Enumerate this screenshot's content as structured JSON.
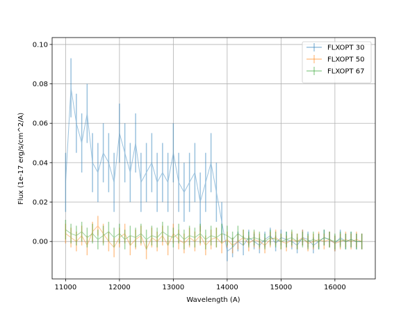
{
  "chart_data": {
    "type": "line",
    "xlabel": "Wavelength (A)",
    "ylabel": "Flux (1e-17 erg/s/cm^2/A)",
    "xlim": [
      10750,
      16750
    ],
    "ylim": [
      -0.019,
      0.1035
    ],
    "xticks": [
      11000,
      12000,
      13000,
      14000,
      15000,
      16000
    ],
    "yticks": [
      0.0,
      0.02,
      0.04,
      0.06,
      0.08,
      0.1
    ],
    "ytick_labels": [
      "0.00",
      "0.02",
      "0.04",
      "0.06",
      "0.08",
      "0.10"
    ],
    "grid": true,
    "legend_position": "top-right",
    "series": [
      {
        "name": "FLXOPT 30",
        "color": "#1f77b4",
        "x": [
          11000,
          11100,
          11200,
          11300,
          11400,
          11500,
          11600,
          11700,
          11800,
          11900,
          12000,
          12100,
          12200,
          12300,
          12400,
          12500,
          12600,
          12700,
          12800,
          12900,
          13000,
          13100,
          13200,
          13300,
          13400,
          13500,
          13600,
          13700,
          13800,
          13900,
          14000,
          14100,
          14200,
          14300,
          14400,
          14500,
          14600,
          14700,
          14800,
          14900,
          15000,
          15100,
          15200,
          15300,
          15400,
          15500,
          15600,
          15700,
          15800,
          15900,
          16000,
          16100,
          16200,
          16300,
          16400,
          16500
        ],
        "y": [
          0.03,
          0.078,
          0.06,
          0.05,
          0.065,
          0.04,
          0.035,
          0.045,
          0.04,
          0.03,
          0.055,
          0.045,
          0.035,
          0.05,
          0.03,
          0.035,
          0.04,
          0.03,
          0.035,
          0.03,
          0.045,
          0.03,
          0.025,
          0.03,
          0.035,
          0.02,
          0.03,
          0.04,
          0.025,
          0.01,
          -0.005,
          -0.003,
          0.0,
          -0.002,
          0.002,
          0.0,
          -0.002,
          0.001,
          0.003,
          -0.001,
          0.002,
          0.001,
          0.0,
          -0.002,
          0.002,
          0.001,
          -0.002,
          0.0,
          0.002,
          0.001,
          -0.001,
          0.002,
          0.0,
          0.001,
          0.0,
          0.0
        ],
        "err": [
          0.015,
          0.015,
          0.015,
          0.015,
          0.015,
          0.015,
          0.015,
          0.015,
          0.015,
          0.015,
          0.015,
          0.015,
          0.015,
          0.015,
          0.015,
          0.015,
          0.015,
          0.015,
          0.015,
          0.015,
          0.015,
          0.015,
          0.015,
          0.015,
          0.015,
          0.015,
          0.015,
          0.015,
          0.015,
          0.01,
          0.005,
          0.005,
          0.005,
          0.005,
          0.004,
          0.004,
          0.004,
          0.004,
          0.004,
          0.004,
          0.004,
          0.004,
          0.004,
          0.004,
          0.004,
          0.004,
          0.004,
          0.004,
          0.004,
          0.004,
          0.004,
          0.004,
          0.004,
          0.004,
          0.004,
          0.004
        ]
      },
      {
        "name": "FLXOPT 50",
        "color": "#ff7f0e",
        "x": [
          11000,
          11100,
          11200,
          11300,
          11400,
          11500,
          11600,
          11700,
          11800,
          11900,
          12000,
          12100,
          12200,
          12300,
          12400,
          12500,
          12600,
          12700,
          12800,
          12900,
          13000,
          13100,
          13200,
          13300,
          13400,
          13500,
          13600,
          13700,
          13800,
          13900,
          14000,
          14100,
          14200,
          14300,
          14400,
          14500,
          14600,
          14700,
          14800,
          14900,
          15000,
          15100,
          15200,
          15300,
          15400,
          15500,
          15600,
          15700,
          15800,
          15900,
          16000,
          16100,
          16200,
          16300,
          16400,
          16500
        ],
        "y": [
          0.004,
          0.002,
          0.0,
          0.003,
          -0.002,
          0.005,
          0.008,
          0.004,
          0.0,
          -0.003,
          0.002,
          0.004,
          -0.002,
          0.001,
          0.003,
          -0.004,
          0.002,
          0.0,
          0.003,
          -0.002,
          0.004,
          0.001,
          -0.001,
          0.002,
          0.0,
          0.003,
          -0.002,
          0.001,
          0.002,
          -0.001,
          0.001,
          -0.002,
          0.0,
          0.002,
          -0.001,
          0.001,
          0.0,
          -0.002,
          0.001,
          0.002,
          0.0,
          -0.001,
          0.001,
          0.0,
          0.002,
          -0.001,
          0.0,
          0.001,
          0.0,
          0.001,
          -0.001,
          0.0,
          0.001,
          0.0,
          0.001,
          0.0
        ],
        "err": [
          0.005,
          0.005,
          0.005,
          0.005,
          0.005,
          0.005,
          0.005,
          0.005,
          0.005,
          0.005,
          0.005,
          0.005,
          0.005,
          0.005,
          0.005,
          0.005,
          0.005,
          0.005,
          0.005,
          0.005,
          0.005,
          0.005,
          0.005,
          0.005,
          0.005,
          0.005,
          0.005,
          0.005,
          0.005,
          0.005,
          0.004,
          0.004,
          0.004,
          0.004,
          0.004,
          0.004,
          0.004,
          0.004,
          0.004,
          0.004,
          0.004,
          0.004,
          0.004,
          0.004,
          0.004,
          0.004,
          0.004,
          0.004,
          0.004,
          0.004,
          0.004,
          0.004,
          0.004,
          0.004,
          0.004,
          0.004
        ]
      },
      {
        "name": "FLXOPT 67",
        "color": "#2ca02c",
        "x": [
          11000,
          11100,
          11200,
          11300,
          11400,
          11500,
          11600,
          11700,
          11800,
          11900,
          12000,
          12100,
          12200,
          12300,
          12400,
          12500,
          12600,
          12700,
          12800,
          12900,
          13000,
          13100,
          13200,
          13300,
          13400,
          13500,
          13600,
          13700,
          13800,
          13900,
          14000,
          14100,
          14200,
          14300,
          14400,
          14500,
          14600,
          14700,
          14800,
          14900,
          15000,
          15100,
          15200,
          15300,
          15400,
          15500,
          15600,
          15700,
          15800,
          15900,
          16000,
          16100,
          16200,
          16300,
          16400,
          16500
        ],
        "y": [
          0.006,
          0.004,
          0.003,
          0.005,
          0.002,
          0.004,
          0.001,
          0.003,
          0.005,
          0.002,
          0.004,
          0.001,
          0.003,
          0.002,
          0.004,
          0.001,
          0.003,
          0.002,
          0.005,
          0.003,
          0.002,
          0.004,
          0.001,
          0.003,
          0.002,
          0.004,
          0.001,
          0.003,
          0.002,
          0.004,
          0.003,
          0.001,
          0.004,
          0.002,
          0.001,
          0.002,
          0.001,
          0.0,
          0.002,
          0.001,
          0.0,
          0.001,
          0.002,
          0.0,
          0.001,
          0.0,
          0.001,
          0.0,
          0.002,
          0.001,
          0.0,
          0.001,
          0.0,
          0.001,
          0.0,
          0.0
        ],
        "err": [
          0.005,
          0.005,
          0.005,
          0.005,
          0.005,
          0.005,
          0.005,
          0.005,
          0.005,
          0.005,
          0.005,
          0.005,
          0.005,
          0.005,
          0.005,
          0.005,
          0.005,
          0.005,
          0.005,
          0.005,
          0.005,
          0.005,
          0.005,
          0.005,
          0.005,
          0.005,
          0.005,
          0.005,
          0.005,
          0.005,
          0.005,
          0.004,
          0.004,
          0.004,
          0.004,
          0.004,
          0.004,
          0.004,
          0.004,
          0.004,
          0.004,
          0.004,
          0.004,
          0.004,
          0.004,
          0.004,
          0.004,
          0.004,
          0.004,
          0.004,
          0.004,
          0.004,
          0.004,
          0.004,
          0.004,
          0.004
        ]
      }
    ]
  }
}
